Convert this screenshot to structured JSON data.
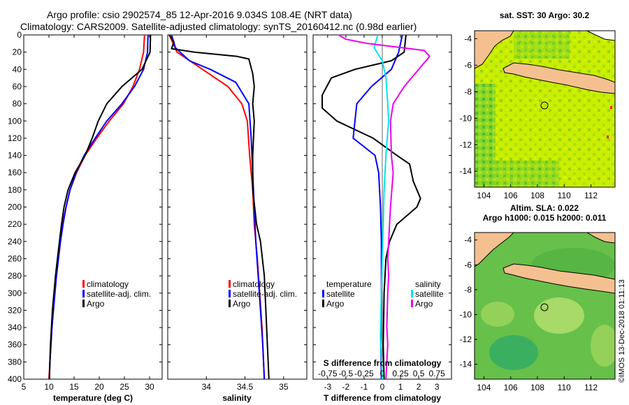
{
  "title_line1": "Argo profile: csio 2902574_85 12-Apr-2016 9.034S 108.4E (NRT data)",
  "title_line2": "Climatology: CARS2009. Satellite-adjusted climatology: synTS_20160412.nc (0.98d earlier)",
  "watermark": "©IMOS 13-Dec-2018 01:11:13",
  "colors": {
    "climatology": "#ff0000",
    "satellite": "#0000ff",
    "argo": "#000000",
    "sal_satellite": "#00e5ee",
    "sal_argo": "#ee00ee",
    "land": "#f4c090",
    "sst": "#c8ee00",
    "sla": "#44aa44"
  },
  "chart_data": [
    {
      "type": "line",
      "id": "temperature",
      "xlabel": "temperature (deg C)",
      "ylabel": "",
      "xlim": [
        5,
        32.5
      ],
      "ylim": [
        400,
        0
      ],
      "xticks": [
        5,
        10,
        15,
        20,
        25,
        30
      ],
      "yticks": [
        0,
        20,
        40,
        60,
        80,
        100,
        120,
        140,
        160,
        180,
        200,
        220,
        240,
        260,
        280,
        300,
        320,
        340,
        360,
        380,
        400
      ],
      "legend": [
        "climatology",
        "satellite-adj. clim.",
        "Argo"
      ],
      "series": [
        {
          "name": "climatology",
          "color": "#ff0000",
          "points": [
            [
              29,
              0
            ],
            [
              28.8,
              20
            ],
            [
              28,
              40
            ],
            [
              26.7,
              60
            ],
            [
              24.8,
              80
            ],
            [
              22,
              100
            ],
            [
              19.5,
              120
            ],
            [
              17.2,
              140
            ],
            [
              15.5,
              160
            ],
            [
              14.2,
              180
            ],
            [
              13.4,
              200
            ],
            [
              12.7,
              220
            ],
            [
              12.2,
              240
            ],
            [
              11.8,
              260
            ],
            [
              11.4,
              280
            ],
            [
              11.1,
              300
            ],
            [
              10.8,
              320
            ],
            [
              10.6,
              340
            ],
            [
              10.4,
              360
            ],
            [
              10.2,
              380
            ],
            [
              10,
              400
            ]
          ]
        },
        {
          "name": "satellite-adj. clim.",
          "color": "#0000ff",
          "points": [
            [
              29.7,
              0
            ],
            [
              29.6,
              20
            ],
            [
              28.8,
              40
            ],
            [
              27,
              60
            ],
            [
              24.5,
              80
            ],
            [
              21.5,
              100
            ],
            [
              19.2,
              120
            ],
            [
              17,
              140
            ],
            [
              15.4,
              160
            ],
            [
              14.2,
              180
            ],
            [
              13.4,
              200
            ],
            [
              12.8,
              220
            ],
            [
              12.3,
              240
            ],
            [
              11.9,
              260
            ],
            [
              11.5,
              280
            ],
            [
              11.2,
              300
            ],
            [
              10.9,
              320
            ],
            [
              10.6,
              340
            ],
            [
              10.4,
              360
            ],
            [
              10.2,
              380
            ],
            [
              10.1,
              400
            ]
          ]
        },
        {
          "name": "Argo",
          "color": "#000000",
          "points": [
            [
              30.2,
              0
            ],
            [
              30.1,
              20
            ],
            [
              28.5,
              40
            ],
            [
              24.5,
              60
            ],
            [
              21.5,
              80
            ],
            [
              19.8,
              100
            ],
            [
              18.6,
              120
            ],
            [
              17.2,
              140
            ],
            [
              15.2,
              160
            ],
            [
              13.8,
              180
            ],
            [
              13,
              200
            ],
            [
              12.5,
              220
            ],
            [
              12.1,
              240
            ],
            [
              11.7,
              260
            ],
            [
              11.3,
              280
            ],
            [
              11,
              300
            ],
            [
              10.7,
              320
            ],
            [
              10.5,
              340
            ],
            [
              10.3,
              360
            ],
            [
              10.2,
              380
            ],
            [
              10.1,
              400
            ]
          ]
        }
      ]
    },
    {
      "type": "line",
      "id": "salinity",
      "xlabel": "salinity",
      "xlim": [
        33.5,
        35.3
      ],
      "ylim": [
        400,
        0
      ],
      "xticks": [
        34,
        34.5,
        35
      ],
      "xtick_labels": [
        "34",
        "34.5",
        "35"
      ],
      "legend": [
        "climatology",
        "satellite-adj. clim.",
        "Argo"
      ],
      "series": [
        {
          "name": "climatology",
          "color": "#ff0000",
          "points": [
            [
              33.52,
              0
            ],
            [
              33.62,
              20
            ],
            [
              33.95,
              40
            ],
            [
              34.28,
              60
            ],
            [
              34.46,
              80
            ],
            [
              34.53,
              100
            ],
            [
              34.56,
              140
            ],
            [
              34.6,
              180
            ],
            [
              34.62,
              220
            ],
            [
              34.66,
              260
            ],
            [
              34.69,
              300
            ],
            [
              34.72,
              340
            ],
            [
              34.74,
              380
            ],
            [
              34.75,
              400
            ]
          ]
        },
        {
          "name": "satellite-adj. clim.",
          "color": "#0000ff",
          "points": [
            [
              33.55,
              0
            ],
            [
              33.6,
              15
            ],
            [
              33.78,
              30
            ],
            [
              34.05,
              40
            ],
            [
              34.38,
              55
            ],
            [
              34.55,
              80
            ],
            [
              34.58,
              120
            ],
            [
              34.6,
              160
            ],
            [
              34.62,
              200
            ],
            [
              34.64,
              240
            ],
            [
              34.67,
              280
            ],
            [
              34.7,
              320
            ],
            [
              34.73,
              360
            ],
            [
              34.75,
              400
            ]
          ]
        },
        {
          "name": "Argo",
          "color": "#000000",
          "points": [
            [
              33.52,
              0
            ],
            [
              33.58,
              8
            ],
            [
              33.55,
              16
            ],
            [
              33.85,
              20
            ],
            [
              34.4,
              25
            ],
            [
              34.55,
              28
            ],
            [
              34.6,
              45
            ],
            [
              34.62,
              60
            ],
            [
              34.6,
              80
            ],
            [
              34.62,
              100
            ],
            [
              34.6,
              140
            ],
            [
              34.6,
              180
            ],
            [
              34.65,
              220
            ],
            [
              34.7,
              240
            ],
            [
              34.75,
              280
            ],
            [
              34.77,
              320
            ],
            [
              34.79,
              360
            ],
            [
              34.81,
              400
            ]
          ]
        }
      ]
    },
    {
      "type": "line",
      "id": "difference",
      "xlabel": "T difference from climatology",
      "xlabel_top": "S difference from climatology",
      "xlim": [
        -3.8,
        3.8
      ],
      "ylim": [
        400,
        0
      ],
      "xticks": [
        -3,
        -2,
        -1,
        0,
        1,
        2,
        3
      ],
      "xtick_labels": [
        "-3",
        "-2",
        "-1",
        "0",
        "1",
        "2",
        "3"
      ],
      "xticks_top": [
        "-0.75",
        "-0.5",
        "-0.25",
        "0",
        "0.25",
        "0.5",
        "0.75"
      ],
      "legend_left": [
        "temperature",
        "satellite",
        "Argo"
      ],
      "legend_right": [
        "salinity",
        "satellite",
        "Argo"
      ],
      "series": [
        {
          "name": "T satellite",
          "color": "#0000ff",
          "points": [
            [
              1.1,
              0
            ],
            [
              0.9,
              20
            ],
            [
              0.5,
              40
            ],
            [
              -0.6,
              60
            ],
            [
              -1.4,
              80
            ],
            [
              -1.5,
              100
            ],
            [
              -1.6,
              120
            ],
            [
              -0.4,
              140
            ],
            [
              -0.2,
              160
            ],
            [
              -0.15,
              180
            ],
            [
              -0.1,
              200
            ],
            [
              -0.05,
              240
            ],
            [
              -0.05,
              300
            ],
            [
              -0.08,
              360
            ],
            [
              -0.05,
              400
            ]
          ]
        },
        {
          "name": "T Argo",
          "color": "#000000",
          "points": [
            [
              1.3,
              0
            ],
            [
              1.2,
              20
            ],
            [
              0.5,
              30
            ],
            [
              -1.5,
              40
            ],
            [
              -2.8,
              50
            ],
            [
              -3.3,
              70
            ],
            [
              -3.3,
              85
            ],
            [
              -2.5,
              100
            ],
            [
              -1.5,
              110
            ],
            [
              -0.5,
              120
            ],
            [
              0.8,
              140
            ],
            [
              1.5,
              150
            ],
            [
              1.7,
              170
            ],
            [
              2.1,
              190
            ],
            [
              1.9,
              200
            ],
            [
              0.8,
              220
            ],
            [
              0.4,
              240
            ],
            [
              0.2,
              260
            ],
            [
              0.1,
              300
            ],
            [
              0.05,
              360
            ],
            [
              0.1,
              400
            ]
          ]
        },
        {
          "name": "S satellite",
          "color": "#00e5ee",
          "points": [
            [
              -0.25,
              0
            ],
            [
              -0.45,
              15
            ],
            [
              0,
              30
            ],
            [
              0.2,
              50
            ],
            [
              0.3,
              80
            ],
            [
              0.35,
              100
            ],
            [
              0.2,
              140
            ],
            [
              0.1,
              180
            ],
            [
              0.05,
              220
            ],
            [
              0,
              260
            ],
            [
              -0.05,
              300
            ],
            [
              -0.1,
              350
            ],
            [
              0,
              400
            ]
          ]
        },
        {
          "name": "S Argo",
          "color": "#ee00ee",
          "points": [
            [
              -2.4,
              0
            ],
            [
              -2.0,
              5
            ],
            [
              -0.8,
              10
            ],
            [
              2.3,
              18
            ],
            [
              2.6,
              25
            ],
            [
              2.0,
              40
            ],
            [
              1.2,
              60
            ],
            [
              0.6,
              80
            ],
            [
              0.45,
              100
            ],
            [
              0.5,
              140
            ],
            [
              0.6,
              160
            ],
            [
              0.45,
              200
            ],
            [
              0.35,
              240
            ],
            [
              0.3,
              260
            ],
            [
              0.35,
              280
            ],
            [
              0.3,
              300
            ],
            [
              0.25,
              340
            ],
            [
              0.3,
              360
            ],
            [
              0.2,
              400
            ]
          ]
        }
      ]
    },
    {
      "type": "heatmap",
      "id": "sst_map",
      "title": "sat. SST: 30 Argo: 30.2",
      "xlim": [
        103.3,
        113.8
      ],
      "ylim": [
        -15.2,
        -3.4
      ],
      "xticks": [
        104,
        106,
        108,
        110,
        112
      ],
      "yticks": [
        -4,
        -6,
        -8,
        -10,
        -12,
        -14
      ],
      "argo_position": [
        108.4,
        -9.034
      ]
    },
    {
      "type": "heatmap",
      "id": "sla_map",
      "title": "Altim. SLA: 0.022",
      "subtitle": "Argo h1000: 0.015 h2000: 0.011",
      "xlim": [
        103.3,
        113.8
      ],
      "ylim": [
        -15.2,
        -3.4
      ],
      "xticks": [
        104,
        106,
        108,
        110,
        112
      ],
      "yticks": [
        -4,
        -6,
        -8,
        -10,
        -12,
        -14
      ],
      "argo_position": [
        108.4,
        -9.034
      ]
    }
  ]
}
